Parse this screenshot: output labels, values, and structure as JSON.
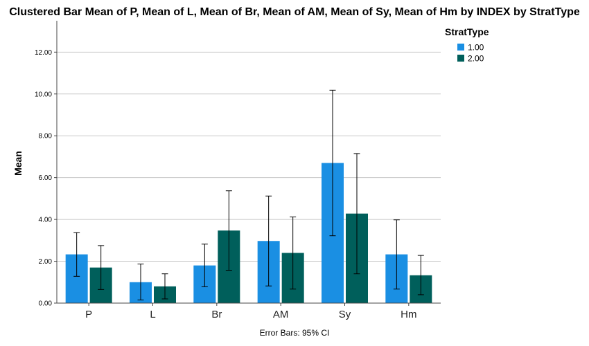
{
  "chart_data": {
    "type": "bar",
    "title": "Clustered Bar Mean of P, Mean of L, Mean of Br, Mean of AM, Mean of Sy, Mean of Hm by INDEX by StratType",
    "ylabel": "Mean",
    "xlabel": "",
    "ylim": [
      0,
      13.5
    ],
    "yticks": [
      "0.00",
      "2.00",
      "4.00",
      "6.00",
      "8.00",
      "10.00",
      "12.00"
    ],
    "ytick_values": [
      0,
      2,
      4,
      6,
      8,
      10,
      12
    ],
    "grid": true,
    "categories": [
      "P",
      "L",
      "Br",
      "AM",
      "Sy",
      "Hm"
    ],
    "legend_title": "StratType",
    "legend_position": "top-right",
    "series": [
      {
        "name": "1.00",
        "color": "#1a8fe3",
        "values": [
          2.33,
          1.0,
          1.8,
          2.97,
          6.7,
          2.33
        ],
        "ci_low": [
          1.28,
          0.15,
          0.78,
          0.82,
          3.22,
          0.67
        ],
        "ci_high": [
          3.37,
          1.87,
          2.82,
          5.12,
          10.18,
          3.98
        ]
      },
      {
        "name": "2.00",
        "color": "#005f5b",
        "values": [
          1.7,
          0.8,
          3.47,
          2.4,
          4.28,
          1.33
        ],
        "ci_low": [
          0.65,
          0.2,
          1.57,
          0.67,
          1.4,
          0.4
        ],
        "ci_high": [
          2.75,
          1.4,
          5.37,
          4.12,
          7.15,
          2.28
        ]
      }
    ],
    "footnote": "Error Bars: 95% CI"
  }
}
